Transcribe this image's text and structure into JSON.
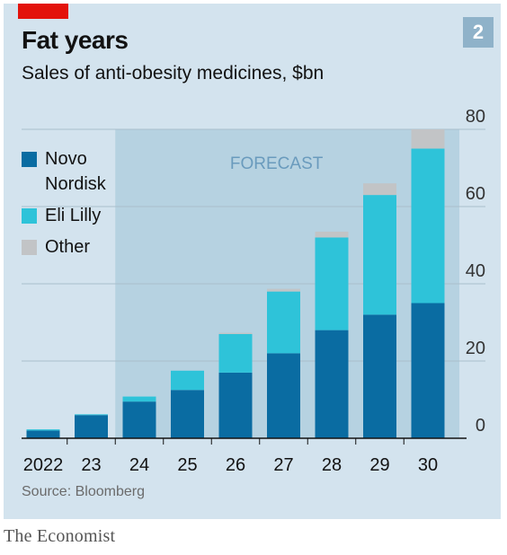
{
  "header": {
    "badge": "2",
    "title": "Fat years",
    "subtitle": "Sales of anti-obesity medicines, $bn"
  },
  "footer": {
    "source": "Source: Bloomberg",
    "brand": "The Economist"
  },
  "colors": {
    "panel": "#d3e3ee",
    "forecast_band": "#b6d2e1",
    "novo": "#0a6ca2",
    "lilly": "#2ec3d9",
    "other": "#c2c4c6",
    "red_tag": "#e3120b",
    "badge": "#8fb2c9"
  },
  "chart_data": {
    "type": "bar",
    "stacked": true,
    "categories": [
      "2022",
      "23",
      "24",
      "25",
      "26",
      "27",
      "28",
      "29",
      "30"
    ],
    "series": [
      {
        "name": "Novo Nordisk",
        "values": [
          2,
          6,
          9.5,
          12.5,
          17,
          22,
          28,
          32,
          35
        ]
      },
      {
        "name": "Eli Lilly",
        "values": [
          0.3,
          0.2,
          1.3,
          5,
          10,
          16,
          24,
          31,
          40
        ]
      },
      {
        "name": "Other",
        "values": [
          0,
          0,
          0,
          0,
          0.3,
          0.7,
          1.5,
          3,
          5
        ]
      }
    ],
    "y_ticks": [
      "0",
      "20",
      "40",
      "60",
      "80"
    ],
    "ylim": [
      0,
      80
    ],
    "forecast_label": "FORECAST",
    "forecast_start": "24",
    "legend_position": "top-left",
    "grid": true
  }
}
